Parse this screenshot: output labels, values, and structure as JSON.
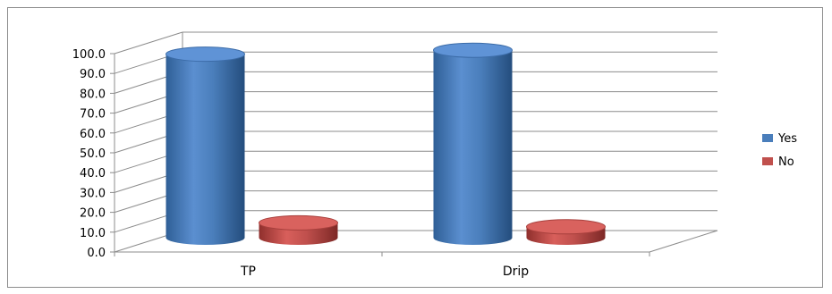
{
  "chart_data": {
    "type": "bar",
    "style": "3d-cylinder",
    "categories": [
      "TP",
      "Drip"
    ],
    "series": [
      {
        "name": "Yes",
        "values": [
          92.5,
          94.5
        ],
        "color": "#4a7ebb"
      },
      {
        "name": "No",
        "values": [
          7.5,
          5.5
        ],
        "color": "#c0504d"
      }
    ],
    "ylim": [
      0,
      100
    ],
    "yticks": [
      "0.0",
      "10.0",
      "20.0",
      "30.0",
      "40.0",
      "50.0",
      "60.0",
      "70.0",
      "80.0",
      "90.0",
      "100.0"
    ],
    "grid": true,
    "legend": "right"
  }
}
